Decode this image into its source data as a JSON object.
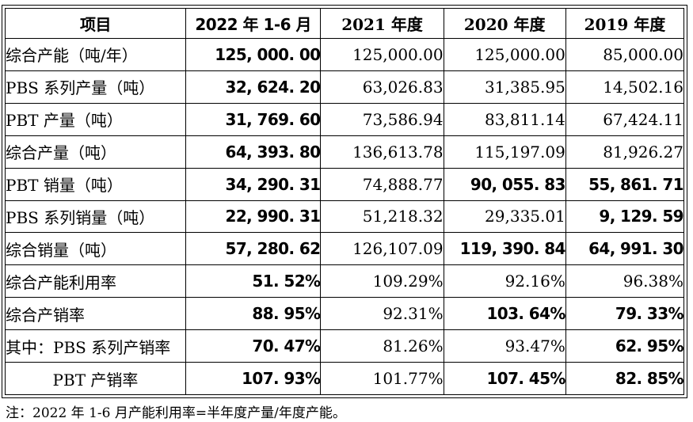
{
  "table": {
    "columns": [
      "项目",
      "2022 年 1-6 月",
      "2021 年度",
      "2020 年度",
      "2019 年度"
    ],
    "rows": [
      {
        "label": "综合产能（吨/年）",
        "cells": [
          {
            "text": "125, 000. 00",
            "bold": true
          },
          {
            "text": "125,000.00",
            "bold": false
          },
          {
            "text": "125,000.00",
            "bold": false
          },
          {
            "text": "85,000.00",
            "bold": false
          }
        ]
      },
      {
        "label": "PBS 系列产量（吨）",
        "cells": [
          {
            "text": "32, 624. 20",
            "bold": true
          },
          {
            "text": "63,026.83",
            "bold": false
          },
          {
            "text": "31,385.95",
            "bold": false
          },
          {
            "text": "14,502.16",
            "bold": false
          }
        ]
      },
      {
        "label": "PBT 产量（吨）",
        "cells": [
          {
            "text": "31, 769. 60",
            "bold": true
          },
          {
            "text": "73,586.94",
            "bold": false
          },
          {
            "text": "83,811.14",
            "bold": false
          },
          {
            "text": "67,424.11",
            "bold": false
          }
        ]
      },
      {
        "label": "综合产量（吨）",
        "cells": [
          {
            "text": "64, 393. 80",
            "bold": true
          },
          {
            "text": "136,613.78",
            "bold": false
          },
          {
            "text": "115,197.09",
            "bold": false
          },
          {
            "text": "81,926.27",
            "bold": false
          }
        ]
      },
      {
        "label": "PBT 销量（吨）",
        "cells": [
          {
            "text": "34, 290. 31",
            "bold": true
          },
          {
            "text": "74,888.77",
            "bold": false
          },
          {
            "text": "90, 055. 83",
            "bold": true
          },
          {
            "text": "55, 861. 71",
            "bold": true
          }
        ]
      },
      {
        "label": "PBS 系列销量（吨）",
        "cells": [
          {
            "text": "22, 990. 31",
            "bold": true
          },
          {
            "text": "51,218.32",
            "bold": false
          },
          {
            "text": "29,335.01",
            "bold": false
          },
          {
            "text": "9, 129. 59",
            "bold": true
          }
        ]
      },
      {
        "label": "综合销量（吨）",
        "cells": [
          {
            "text": "57, 280. 62",
            "bold": true
          },
          {
            "text": "126,107.09",
            "bold": false
          },
          {
            "text": "119, 390. 84",
            "bold": true
          },
          {
            "text": "64, 991. 30",
            "bold": true
          }
        ]
      },
      {
        "label": "综合产能利用率",
        "cells": [
          {
            "text": "51. 52%",
            "bold": true
          },
          {
            "text": "109.29%",
            "bold": false
          },
          {
            "text": "92.16%",
            "bold": false
          },
          {
            "text": "96.38%",
            "bold": false
          }
        ]
      },
      {
        "label": "综合产销率",
        "cells": [
          {
            "text": "88. 95%",
            "bold": true
          },
          {
            "text": "92.31%",
            "bold": false
          },
          {
            "text": "103. 64%",
            "bold": true
          },
          {
            "text": "79. 33%",
            "bold": true
          }
        ]
      },
      {
        "label": "其中：PBS 系列产销率",
        "cells": [
          {
            "text": "70. 47%",
            "bold": true
          },
          {
            "text": "81.26%",
            "bold": false
          },
          {
            "text": "93.47%",
            "bold": false
          },
          {
            "text": "62. 95%",
            "bold": true
          }
        ]
      },
      {
        "label": "PBT 产销率",
        "align": "center",
        "cells": [
          {
            "text": "107. 93%",
            "bold": true
          },
          {
            "text": "101.77%",
            "bold": false
          },
          {
            "text": "107. 45%",
            "bold": true
          },
          {
            "text": "82. 85%",
            "bold": true
          }
        ]
      }
    ]
  },
  "note": "注：2022 年 1-6 月产能利用率=半年度产量/年度产能。"
}
